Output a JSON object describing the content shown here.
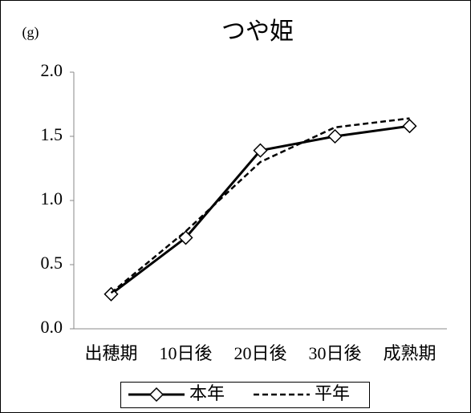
{
  "chart_data": {
    "type": "line",
    "title": "つや姫",
    "y_label": "(g)",
    "categories": [
      "出穂期",
      "10日後",
      "20日後",
      "30日後",
      "成熟期"
    ],
    "series": [
      {
        "name": "本年",
        "color": "#000000",
        "dash": false,
        "marker": "diamond",
        "values": [
          0.27,
          0.71,
          1.39,
          1.5,
          1.58
        ]
      },
      {
        "name": "平年",
        "color": "#000000",
        "dash": true,
        "marker": "none",
        "values": [
          0.28,
          0.76,
          1.3,
          1.57,
          1.64
        ]
      }
    ],
    "ylim": [
      0,
      2
    ],
    "yticks": [
      {
        "value": 0,
        "label": "0.0"
      },
      0.5,
      {
        "value": 1,
        "label": "1.0"
      },
      1.5,
      {
        "value": 2,
        "label": "2.0"
      }
    ],
    "grid": false,
    "legend": "bottom"
  }
}
